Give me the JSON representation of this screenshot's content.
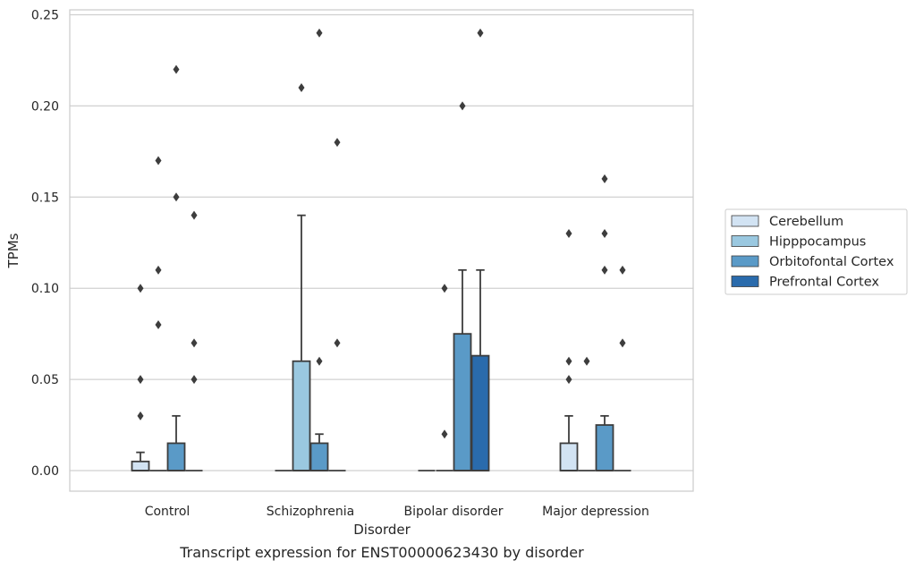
{
  "chart_data": {
    "type": "box",
    "title": "Transcript expression for ENST00000623430 by disorder",
    "xlabel": "Disorder",
    "ylabel": "TPMs",
    "ylim": [
      -0.012,
      0.252
    ],
    "yticks": [
      0.0,
      0.05,
      0.1,
      0.15,
      0.2,
      0.25
    ],
    "ytick_labels": [
      "0.00",
      "0.05",
      "0.10",
      "0.15",
      "0.20",
      "0.25"
    ],
    "categories": [
      "Control",
      "Schizophrenia",
      "Bipolar disorder",
      "Major depression"
    ],
    "grid": "horizontal",
    "legend_position": "right",
    "series": [
      {
        "name": "Cerebellum",
        "color": "#d2e3f3",
        "boxes": [
          {
            "q1": 0.0,
            "median": 0.0,
            "q3": 0.005,
            "whisker_low": 0.0,
            "whisker_high": 0.01,
            "outliers": [
              0.03,
              0.05,
              0.1
            ]
          },
          {
            "q1": 0.0,
            "median": 0.0,
            "q3": 0.0,
            "whisker_low": 0.0,
            "whisker_high": 0.0,
            "outliers": []
          },
          {
            "q1": 0.0,
            "median": 0.0,
            "q3": 0.0,
            "whisker_low": 0.0,
            "whisker_high": 0.0,
            "outliers": []
          },
          {
            "q1": 0.0,
            "median": 0.0,
            "q3": 0.015,
            "whisker_low": 0.0,
            "whisker_high": 0.03,
            "outliers": [
              0.05,
              0.06,
              0.13
            ]
          }
        ]
      },
      {
        "name": "Hipppocampus",
        "color": "#9ac8e0",
        "boxes": [
          {
            "q1": 0.0,
            "median": 0.0,
            "q3": 0.0,
            "whisker_low": 0.0,
            "whisker_high": 0.0,
            "outliers": [
              0.08,
              0.11,
              0.17
            ]
          },
          {
            "q1": 0.0,
            "median": 0.0,
            "q3": 0.06,
            "whisker_low": 0.0,
            "whisker_high": 0.14,
            "outliers": [
              0.21
            ]
          },
          {
            "q1": 0.0,
            "median": 0.0,
            "q3": 0.0,
            "whisker_low": 0.0,
            "whisker_high": 0.0,
            "outliers": [
              0.02,
              0.1
            ]
          },
          {
            "q1": 0.0,
            "median": 0.0,
            "q3": 0.0,
            "whisker_low": 0.0,
            "whisker_high": 0.0,
            "outliers": [
              0.06
            ]
          }
        ]
      },
      {
        "name": "Orbitofontal Cortex",
        "color": "#5a9ac7",
        "boxes": [
          {
            "q1": 0.0,
            "median": 0.0,
            "q3": 0.015,
            "whisker_low": 0.0,
            "whisker_high": 0.03,
            "outliers": [
              0.15,
              0.22
            ]
          },
          {
            "q1": 0.0,
            "median": 0.0,
            "q3": 0.015,
            "whisker_low": 0.0,
            "whisker_high": 0.02,
            "outliers": [
              0.06,
              0.24
            ]
          },
          {
            "q1": 0.0,
            "median": 0.0,
            "q3": 0.075,
            "whisker_low": 0.0,
            "whisker_high": 0.11,
            "outliers": [
              0.2
            ]
          },
          {
            "q1": 0.0,
            "median": 0.0,
            "q3": 0.025,
            "whisker_low": 0.0,
            "whisker_high": 0.03,
            "outliers": [
              0.11,
              0.13,
              0.16
            ]
          }
        ]
      },
      {
        "name": "Prefrontal Cortex",
        "color": "#2a6bac",
        "boxes": [
          {
            "q1": 0.0,
            "median": 0.0,
            "q3": 0.0,
            "whisker_low": 0.0,
            "whisker_high": 0.0,
            "outliers": [
              0.05,
              0.07,
              0.14
            ]
          },
          {
            "q1": 0.0,
            "median": 0.0,
            "q3": 0.0,
            "whisker_low": 0.0,
            "whisker_high": 0.0,
            "outliers": [
              0.07,
              0.18
            ]
          },
          {
            "q1": 0.0,
            "median": 0.0,
            "q3": 0.063,
            "whisker_low": 0.0,
            "whisker_high": 0.11,
            "outliers": [
              0.24
            ]
          },
          {
            "q1": 0.0,
            "median": 0.0,
            "q3": 0.0,
            "whisker_low": 0.0,
            "whisker_high": 0.0,
            "outliers": [
              0.07,
              0.11
            ]
          }
        ]
      }
    ]
  }
}
